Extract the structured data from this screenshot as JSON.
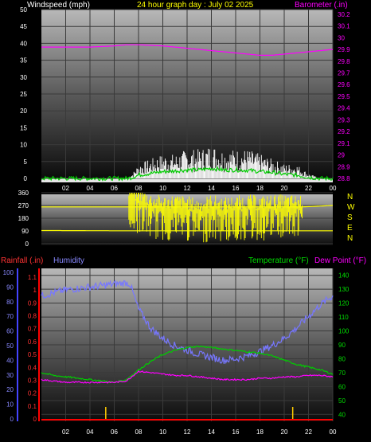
{
  "header": {
    "left_label": "Windspeed (mph)",
    "center_label": "24 hour graph day : July 02 2025",
    "right_label": "Barometer (.in)"
  },
  "bottom_header": {
    "rainfall_label": "Rainfall (.in)",
    "humidity_label": "Humidity",
    "temperature_label": "Temperature (°F)",
    "dewpoint_label": "Dew Point (°F)"
  },
  "colors": {
    "windspeed": "#ffffff",
    "wind_avg": "#00cc00",
    "barometer": "#ff00ff",
    "direction": "#ffff00",
    "humidity": "#7777ff",
    "temperature": "#00cc00",
    "dewpoint": "#ff00ff",
    "rainfall": "#ff0000",
    "rain_marker": "#ffcc00"
  },
  "chart_data": [
    {
      "type": "line",
      "x_ticks": [
        "02",
        "04",
        "06",
        "08",
        "10",
        "12",
        "14",
        "16",
        "18",
        "20",
        "22",
        "00"
      ],
      "y_left_ticks": [
        "0",
        "5",
        "10",
        "15",
        "20",
        "25",
        "30",
        "35",
        "40",
        "45",
        "50"
      ],
      "y_right_ticks": [
        "28.8",
        "28.9",
        "29",
        "29.1",
        "29.2",
        "29.3",
        "29.4",
        "29.5",
        "29.6",
        "29.7",
        "29.8",
        "29.9",
        "30",
        "30.1",
        "30.2"
      ],
      "ylim_left": [
        0,
        50
      ],
      "ylim_right": [
        28.8,
        30.24
      ],
      "series": [
        {
          "axis": "right",
          "x": [
            0,
            2,
            4,
            6,
            7,
            8,
            10,
            12,
            14,
            16,
            17,
            18,
            19,
            20,
            22,
            24
          ],
          "values": [
            29.92,
            29.92,
            29.92,
            29.93,
            29.94,
            29.94,
            29.93,
            29.91,
            29.89,
            29.87,
            29.86,
            29.85,
            29.85,
            29.86,
            29.88,
            29.9
          ]
        },
        {
          "axis": "left",
          "x": [
            0,
            2,
            4,
            6,
            7,
            7.5,
            8,
            9,
            10,
            11,
            12,
            13,
            14,
            15,
            16,
            17,
            18,
            19,
            20,
            21,
            22,
            23,
            24
          ],
          "values": [
            0,
            0,
            0,
            0,
            0,
            1,
            3,
            4,
            5,
            5,
            6,
            6,
            7,
            6,
            6,
            6,
            5,
            4,
            3,
            3,
            1,
            0,
            0
          ]
        },
        {
          "axis": "left",
          "x": [
            0,
            2,
            4,
            6,
            7,
            7.5,
            8,
            9,
            10,
            11,
            12,
            13,
            14,
            15,
            16,
            17,
            18,
            19,
            20,
            21,
            22,
            23,
            24
          ],
          "values": [
            0,
            0,
            0,
            0,
            0,
            0.3,
            1,
            1.5,
            2,
            2.2,
            2.5,
            2.5,
            3,
            2.5,
            2.5,
            2.4,
            2,
            1.8,
            1.2,
            1,
            0.3,
            0,
            0
          ]
        }
      ]
    },
    {
      "type": "scatter",
      "x_ticks": [],
      "y_ticks": [
        "360",
        "270",
        "180",
        "90",
        "0"
      ],
      "side_letters": [
        "N",
        "W",
        "S",
        "E",
        "N"
      ],
      "ylim": [
        0,
        360
      ],
      "series": [
        {
          "x": [
            0,
            1,
            2,
            3,
            4,
            5,
            6,
            7,
            7.2,
            8,
            9,
            10,
            11,
            12,
            13,
            14,
            15,
            16,
            17,
            18,
            19,
            20,
            21,
            22,
            23,
            24
          ],
          "values": [
            93,
            93,
            93,
            93,
            92,
            92,
            91,
            92,
            320,
            300,
            260,
            240,
            250,
            240,
            220,
            250,
            230,
            240,
            250,
            240,
            250,
            250,
            245,
            270,
            270,
            270
          ]
        }
      ]
    },
    {
      "type": "line",
      "x_ticks": [
        "02",
        "04",
        "06",
        "08",
        "10",
        "12",
        "14",
        "16",
        "18",
        "20",
        "22",
        "00"
      ],
      "y_rain_ticks": [
        "0",
        "0.1",
        "0.2",
        "0.3",
        "0.4",
        "0.5",
        "0.6",
        "0.7",
        "0.8",
        "0.9",
        "1",
        "1.1"
      ],
      "y_hum_ticks": [
        "0",
        "10",
        "20",
        "30",
        "40",
        "50",
        "60",
        "70",
        "80",
        "90",
        "100"
      ],
      "y_temp_ticks": [
        "40",
        "50",
        "60",
        "70",
        "80",
        "90",
        "100",
        "110",
        "120",
        "130",
        "140"
      ],
      "ylim_rain": [
        0,
        1.1
      ],
      "ylim_humidity": [
        0,
        100
      ],
      "ylim_temp": [
        35,
        145
      ],
      "series": [
        {
          "axis": "humidity",
          "x": [
            0,
            1,
            2,
            3,
            4,
            5,
            6,
            7,
            7.3,
            8,
            9,
            10,
            11,
            12,
            13,
            14,
            15,
            16,
            17,
            18,
            19,
            20,
            21,
            22,
            23,
            24
          ],
          "values": [
            84,
            86,
            88,
            89,
            90,
            91,
            92,
            93,
            92,
            75,
            62,
            55,
            50,
            47,
            44,
            42,
            40,
            41,
            43,
            46,
            50,
            55,
            62,
            70,
            78,
            84
          ]
        },
        {
          "axis": "temp",
          "x": [
            0,
            1,
            2,
            3,
            4,
            5,
            6,
            7,
            8,
            9,
            10,
            11,
            12,
            13,
            14,
            15,
            16,
            17,
            18,
            19,
            20,
            21,
            22,
            23,
            24
          ],
          "values": [
            70,
            68,
            67,
            66,
            65,
            64,
            63,
            65,
            72,
            78,
            83,
            86,
            88,
            89,
            88,
            87,
            86,
            85,
            84,
            82,
            79,
            76,
            74,
            72,
            69
          ]
        },
        {
          "axis": "temp",
          "x": [
            0,
            1,
            2,
            3,
            4,
            5,
            6,
            7,
            8,
            9,
            10,
            11,
            12,
            13,
            14,
            15,
            16,
            17,
            18,
            19,
            20,
            21,
            22,
            23,
            24
          ],
          "values": [
            65,
            64,
            63,
            63,
            63,
            63,
            63,
            64,
            71,
            70,
            69,
            68,
            68,
            67,
            66,
            65,
            65,
            65,
            66,
            66,
            67,
            67,
            68,
            68,
            67
          ]
        },
        {
          "axis": "rain",
          "x": [
            5.3,
            20.7
          ],
          "values": [
            0.05,
            0.05
          ]
        }
      ]
    }
  ]
}
